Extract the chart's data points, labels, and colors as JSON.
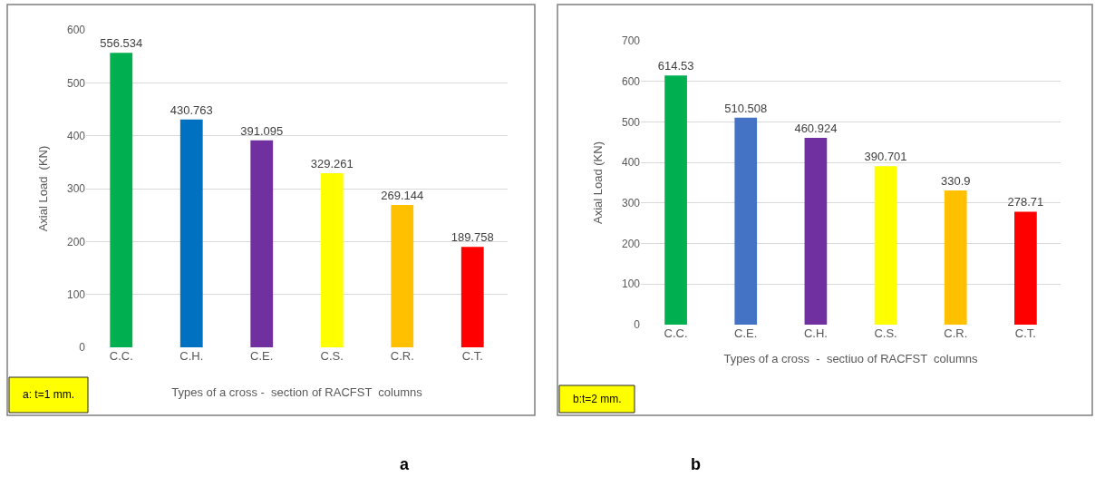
{
  "chart_data": [
    {
      "type": "bar",
      "categories": [
        "C.C.",
        "C.H.",
        "C.E.",
        "C.S.",
        "C.R.",
        "C.T."
      ],
      "values": [
        556.534,
        430.763,
        391.095,
        329.261,
        269.144,
        189.758
      ],
      "colors": [
        "#00b050",
        "#0070c0",
        "#7030a0",
        "#ffff00",
        "#ffc000",
        "#ff0000"
      ],
      "ylim": [
        0,
        600
      ],
      "yticks": [
        0,
        100,
        200,
        300,
        400,
        500,
        600
      ],
      "grid": "y",
      "data_labels": true,
      "xlabel": "Types of a cross -  section of RACFST  columns",
      "ylabel": "Axial Load  (KN)",
      "annotations": [
        "a: t=1 mm.",
        "a"
      ]
    },
    {
      "type": "bar",
      "categories": [
        "C.C.",
        "C.E.",
        "C.H.",
        "C.S.",
        "C.R.",
        "C.T."
      ],
      "values": [
        614.53,
        510.508,
        460.924,
        390.701,
        330.9,
        278.71
      ],
      "colors": [
        "#00b050",
        "#4472c4",
        "#7030a0",
        "#ffff00",
        "#ffc000",
        "#ff0000"
      ],
      "ylim": [
        0,
        700
      ],
      "yticks": [
        0,
        100,
        200,
        300,
        400,
        500,
        600,
        700
      ],
      "grid": "y",
      "data_labels": true,
      "xlabel": "Types of a cross  -  sectiuo of RACFST  columns",
      "ylabel": "Axial Load (KN)",
      "annotations": [
        "b:t=2 mm.",
        "b"
      ]
    }
  ]
}
